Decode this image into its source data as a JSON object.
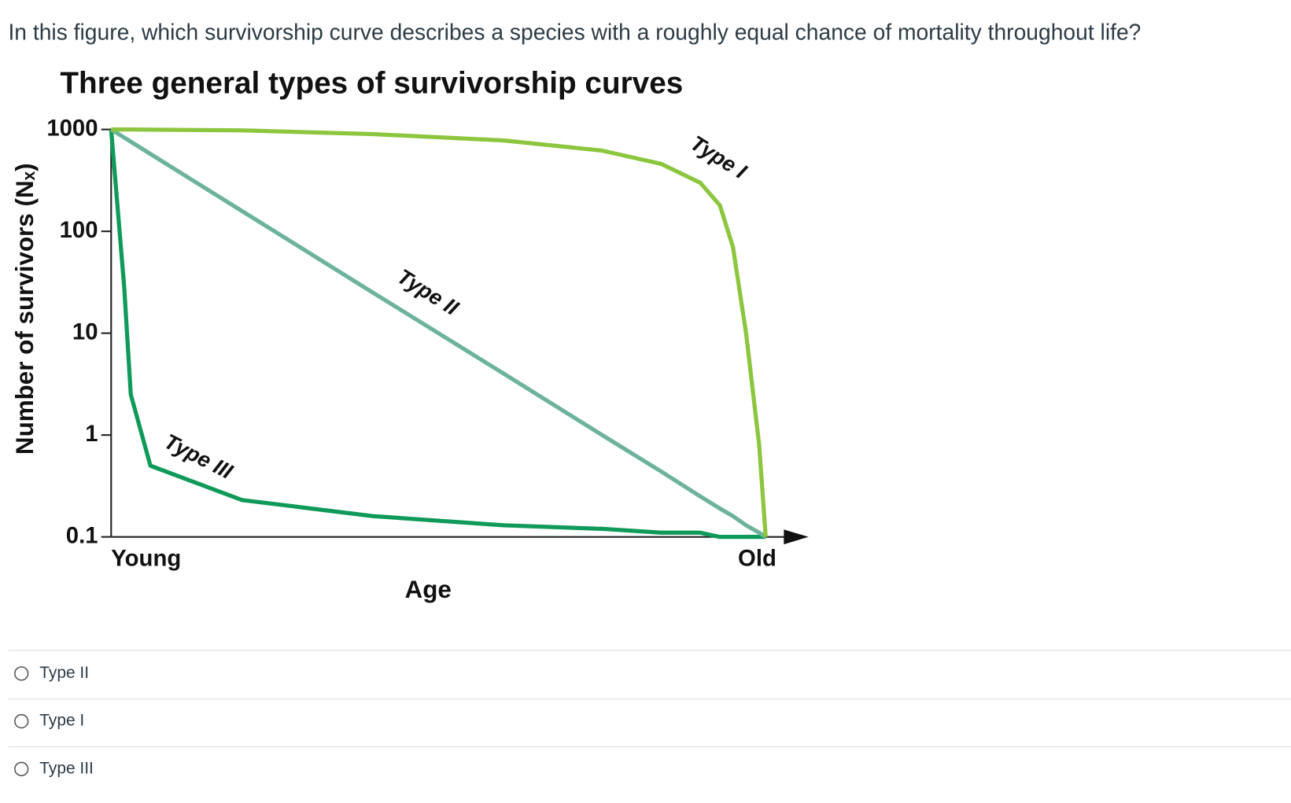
{
  "question": "In this figure, which survivorship curve describes a species with a roughly equal chance of mortality throughout life?",
  "chart_data": {
    "type": "line",
    "title": "Three general types of survivorship curves",
    "xlabel": "Age",
    "ylabel": "Number of survivors (Nₓ)",
    "x": [
      0,
      0.02,
      0.03,
      0.06,
      0.2,
      0.4,
      0.6,
      0.75,
      0.84,
      0.9,
      0.93,
      0.95,
      0.97,
      0.99,
      1
    ],
    "xlim": [
      0,
      1
    ],
    "xticks": [
      {
        "value": 0,
        "label": "Young"
      },
      {
        "value": 1,
        "label": "Old"
      }
    ],
    "ylim": [
      0.1,
      1000
    ],
    "yticks": [
      0.1,
      1,
      10,
      100,
      1000
    ],
    "yscale": "log",
    "series": [
      {
        "name": "Type I",
        "color": "#8cc63f",
        "values": [
          1000,
          1000,
          1000,
          995,
          980,
          900,
          780,
          620,
          460,
          300,
          180,
          70,
          10,
          0.8,
          0.1
        ]
      },
      {
        "name": "Type II",
        "color": "#6db39a",
        "values": [
          1000,
          832,
          759,
          575,
          158,
          25,
          4,
          1,
          0.44,
          0.25,
          0.19,
          0.16,
          0.13,
          0.11,
          0.1
        ]
      },
      {
        "name": "Type III",
        "color": "#109a5a",
        "values": [
          1000,
          28,
          2.5,
          0.5,
          0.23,
          0.16,
          0.13,
          0.12,
          0.11,
          0.11,
          0.1,
          0.1,
          0.1,
          0.1,
          0.1
        ]
      }
    ]
  },
  "options": [
    "Type II",
    "Type I",
    "Type III"
  ]
}
